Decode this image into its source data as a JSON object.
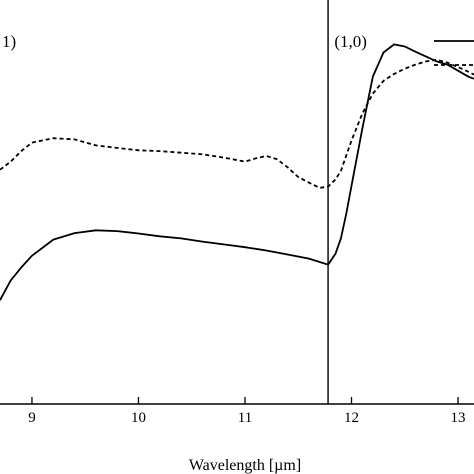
{
  "chart_data": {
    "type": "line",
    "title": "",
    "xlabel": "Wavelength [µm]",
    "ylabel": "",
    "xlim": [
      8.7,
      13.15
    ],
    "ylim": [
      0,
      1
    ],
    "x_ticks": [
      9,
      10,
      11,
      12,
      13
    ],
    "tick_labels": [
      "9",
      "10",
      "11",
      "12",
      "13"
    ],
    "divider_x": 11.78,
    "panel_labels": [
      {
        "text": "1)",
        "x": 8.7,
        "y": 0.975
      },
      {
        "text": "(1,0)",
        "x": 11.82,
        "y": 0.975
      }
    ],
    "legend": {
      "placement": "top-right",
      "entries": [
        {
          "style": "solid"
        },
        {
          "style": "dashed"
        }
      ]
    },
    "grid": false,
    "series": [
      {
        "style": "solid",
        "x": [
          8.7,
          8.8,
          8.9,
          9.0,
          9.2,
          9.4,
          9.6,
          9.8,
          10.0,
          10.2,
          10.4,
          10.6,
          10.8,
          11.0,
          11.2,
          11.4,
          11.6,
          11.78,
          11.85,
          11.9,
          11.95,
          12.0,
          12.1,
          12.2,
          12.3,
          12.4,
          12.5,
          12.6,
          12.7,
          12.8,
          12.9,
          13.0,
          13.1,
          13.15
        ],
        "y": [
          0.257,
          0.306,
          0.338,
          0.367,
          0.407,
          0.423,
          0.43,
          0.428,
          0.422,
          0.415,
          0.41,
          0.402,
          0.395,
          0.388,
          0.38,
          0.37,
          0.36,
          0.345,
          0.372,
          0.41,
          0.47,
          0.54,
          0.68,
          0.81,
          0.87,
          0.89,
          0.885,
          0.872,
          0.86,
          0.848,
          0.84,
          0.825,
          0.81,
          0.805
        ]
      },
      {
        "style": "dashed",
        "x": [
          8.7,
          8.8,
          8.9,
          9.0,
          9.2,
          9.4,
          9.6,
          9.8,
          10.0,
          10.2,
          10.4,
          10.6,
          10.8,
          11.0,
          11.1,
          11.2,
          11.3,
          11.4,
          11.5,
          11.6,
          11.7,
          11.78,
          11.85,
          11.9,
          12.0,
          12.1,
          12.2,
          12.3,
          12.4,
          12.5,
          12.6,
          12.7,
          12.8,
          12.9,
          13.0,
          13.1,
          13.15
        ],
        "y": [
          0.58,
          0.6,
          0.626,
          0.647,
          0.658,
          0.655,
          0.64,
          0.634,
          0.628,
          0.626,
          0.622,
          0.618,
          0.61,
          0.6,
          0.608,
          0.614,
          0.606,
          0.586,
          0.562,
          0.548,
          0.535,
          0.538,
          0.556,
          0.577,
          0.652,
          0.718,
          0.768,
          0.8,
          0.817,
          0.83,
          0.84,
          0.848,
          0.852,
          0.845,
          0.834,
          0.822,
          0.815
        ]
      }
    ]
  }
}
